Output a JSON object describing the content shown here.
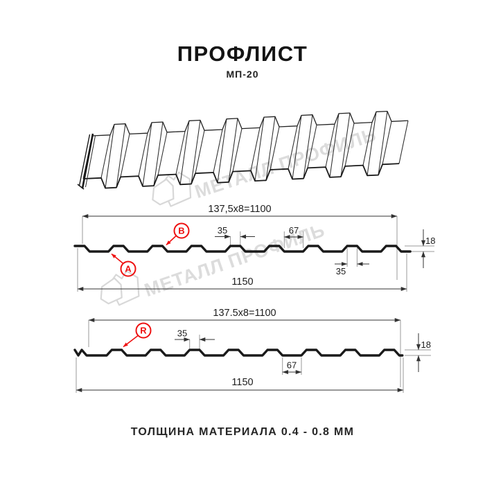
{
  "header": {
    "title": "ПРОФЛИСТ",
    "subtitle": "МП-20"
  },
  "watermark": {
    "brand": "МЕТАЛЛ ПРОФИЛЬ"
  },
  "diagram_top": {
    "dim_width_formula": "137,5x8=1100",
    "dim_rib_top": "35",
    "dim_valley": "67",
    "dim_height": "18",
    "dim_rib_bottom": "35",
    "dim_total_width": "1150",
    "label_a": "A",
    "label_b": "B"
  },
  "diagram_bottom": {
    "dim_width_formula": "137.5x8=1100",
    "dim_rib_top": "35",
    "dim_valley": "67",
    "dim_height": "18",
    "dim_total_width": "1150",
    "label_r": "R"
  },
  "footer": {
    "note": "ТОЛЩИНА МАТЕРИАЛА 0.4 - 0.8 ММ"
  },
  "colors": {
    "line": "#1a1a1a",
    "dim_line": "#333333",
    "ext_line": "#999999",
    "accent_red": "#ee1111",
    "watermark": "#d9d9d9"
  }
}
